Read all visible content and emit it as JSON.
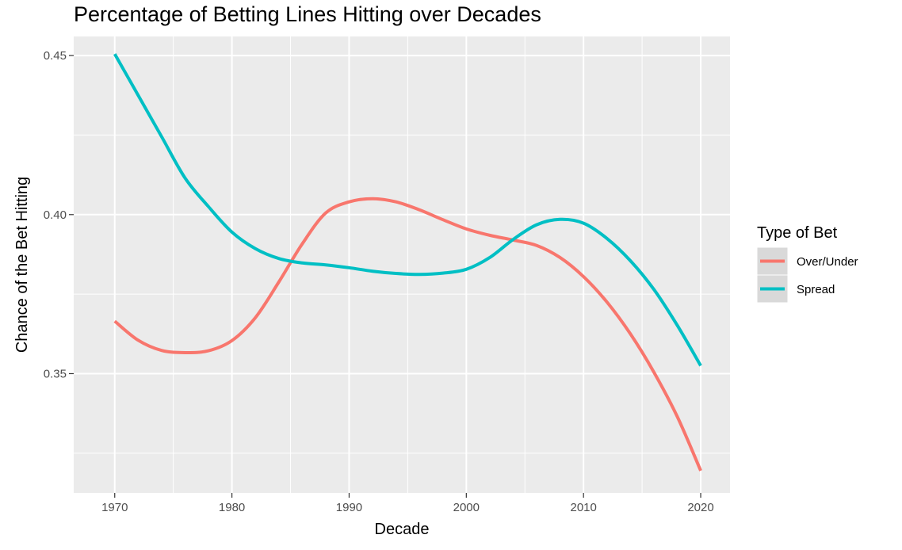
{
  "chart_data": {
    "type": "line",
    "title": "Percentage of Betting Lines Hitting over Decades",
    "xlabel": "Decade",
    "ylabel": "Chance of the Bet Hitting",
    "xlim": [
      1966.5,
      2022.5
    ],
    "ylim": [
      0.3125,
      0.456
    ],
    "x_ticks": [
      1970,
      1980,
      1990,
      2000,
      2010,
      2020
    ],
    "y_ticks": [
      0.35,
      0.4,
      0.45
    ],
    "y_tick_labels": [
      "0.35",
      "0.40",
      "0.45"
    ],
    "grid": true,
    "legend": {
      "title": "Type of Bet",
      "position": "right"
    },
    "series": [
      {
        "name": "Over/Under",
        "color": "#F8766D",
        "x": [
          1970,
          1972,
          1974,
          1976,
          1978,
          1980,
          1982,
          1984,
          1986,
          1988,
          1990,
          1992,
          1994,
          1996,
          1998,
          2000,
          2002,
          2004,
          2006,
          2008,
          2010,
          2012,
          2014,
          2016,
          2018,
          2020
        ],
        "values": [
          0.3665,
          0.3605,
          0.3573,
          0.3566,
          0.3572,
          0.3604,
          0.3676,
          0.3788,
          0.3908,
          0.4005,
          0.404,
          0.405,
          0.404,
          0.4015,
          0.3984,
          0.3955,
          0.3935,
          0.392,
          0.3903,
          0.3865,
          0.3805,
          0.3725,
          0.3625,
          0.3505,
          0.3365,
          0.3195
        ]
      },
      {
        "name": "Spread",
        "color": "#00BFC4",
        "x": [
          1970,
          1972,
          1974,
          1976,
          1978,
          1980,
          1982,
          1984,
          1986,
          1988,
          1990,
          1992,
          1994,
          1996,
          1998,
          2000,
          2002,
          2004,
          2006,
          2008,
          2010,
          2012,
          2014,
          2016,
          2018,
          2020
        ],
        "values": [
          0.4505,
          0.4375,
          0.4245,
          0.4115,
          0.4025,
          0.3945,
          0.3893,
          0.3862,
          0.3848,
          0.3842,
          0.3833,
          0.3822,
          0.3815,
          0.3812,
          0.3816,
          0.3828,
          0.3865,
          0.3922,
          0.3968,
          0.3985,
          0.3973,
          0.3925,
          0.3855,
          0.3765,
          0.3652,
          0.3525
        ]
      }
    ]
  }
}
